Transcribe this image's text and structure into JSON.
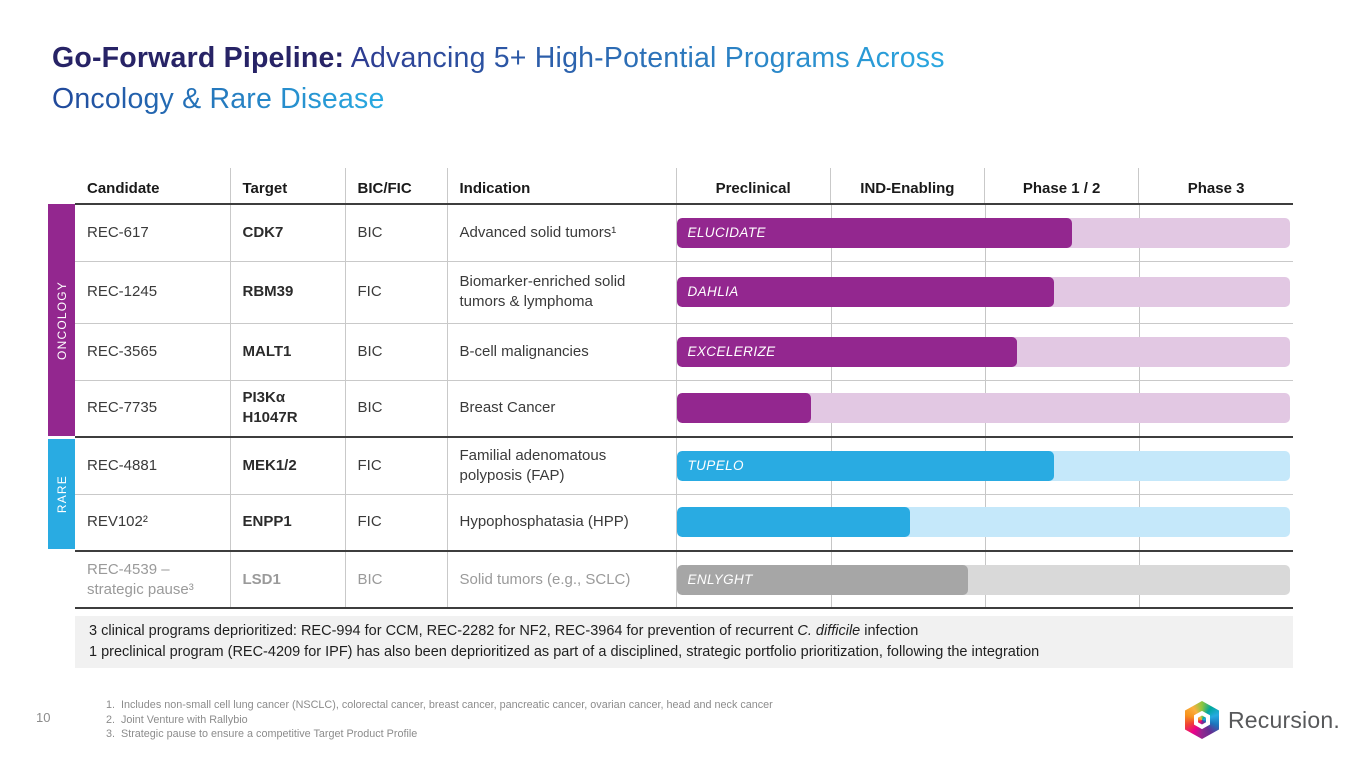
{
  "title": {
    "bold": "Go-Forward Pipeline:",
    "line1_rest": "Advancing 5+ High-Potential Programs Across",
    "line2": "Oncology & Rare Disease"
  },
  "groups": {
    "oncology": {
      "label": "ONCOLOGY",
      "color": "#93278F"
    },
    "rare": {
      "label": "RARE",
      "color": "#29ABE2"
    }
  },
  "colors": {
    "oncology": {
      "bar": "#93278F",
      "track": "#E2C8E3"
    },
    "rare": {
      "bar": "#29ABE2",
      "track": "#C5E8FA"
    },
    "paused": {
      "bar": "#A6A6A6",
      "track": "#D9D9D9"
    }
  },
  "table": {
    "headers": [
      "Candidate",
      "Target",
      "BIC/FIC",
      "Indication",
      "Preclinical",
      "IND-Enabling",
      "Phase 1 / 2",
      "Phase 3"
    ],
    "rows": [
      {
        "candidate": "REC-617",
        "target": "CDK7",
        "bic_fic": "BIC",
        "indication": "Advanced solid tumors¹",
        "group": "oncology",
        "bar": {
          "label": "ELUCIDATE",
          "progress_pct": 64.5
        },
        "thick_bottom": false
      },
      {
        "candidate": "REC-1245",
        "target": "RBM39",
        "bic_fic": "FIC",
        "indication": "Biomarker-enriched solid tumors & lymphoma",
        "group": "oncology",
        "bar": {
          "label": "DAHLIA",
          "progress_pct": 61.5
        },
        "thick_bottom": false
      },
      {
        "candidate": "REC-3565",
        "target": "MALT1",
        "bic_fic": "BIC",
        "indication": "B-cell malignancies",
        "group": "oncology",
        "bar": {
          "label": "EXCELERIZE",
          "progress_pct": 55.5
        },
        "thick_bottom": false
      },
      {
        "candidate": "REC-7735",
        "target": "PI3Kα H1047R",
        "bic_fic": "BIC",
        "indication": "Breast Cancer",
        "group": "oncology",
        "bar": {
          "label": "",
          "progress_pct": 22
        },
        "thick_bottom": true
      },
      {
        "candidate": "REC-4881",
        "target": "MEK1/2",
        "bic_fic": "FIC",
        "indication": "Familial adenomatous polyposis (FAP)",
        "group": "rare",
        "bar": {
          "label": "TUPELO",
          "progress_pct": 61.5
        },
        "thick_bottom": false
      },
      {
        "candidate": "REV102²",
        "target": "ENPP1",
        "bic_fic": "FIC",
        "indication": "Hypophosphatasia (HPP)",
        "group": "rare",
        "bar": {
          "label": "",
          "progress_pct": 38
        },
        "thick_bottom": true
      },
      {
        "candidate": "REC-4539 – strategic pause³",
        "target": "LSD1",
        "bic_fic": "BIC",
        "indication": "Solid tumors (e.g., SCLC)",
        "group": "paused",
        "bar": {
          "label": "ENLYGHT",
          "progress_pct": 47.5
        },
        "thick_bottom": true
      }
    ]
  },
  "deprioritized_note": {
    "line1_pre": "3 clinical programs deprioritized: REC-994 for CCM, REC-2282 for NF2, REC-3964 for prevention of recurrent ",
    "line1_italic": "C. difficile",
    "line1_post": " infection",
    "line2": "1 preclinical program (REC-4209 for IPF) has also been deprioritized as part of a disciplined, strategic portfolio prioritization, following the integration"
  },
  "footnotes": [
    "Includes non-small cell lung cancer (NSCLC), colorectal cancer, breast cancer, pancreatic cancer, ovarian cancer, head and neck cancer",
    "Joint Venture with Rallybio",
    "Strategic pause to ensure a competitive Target Product Profile"
  ],
  "page_number": "10",
  "logo": {
    "text": "Recursion.",
    "colors": [
      "#8DC63F",
      "#00A79D",
      "#27AAE1",
      "#1B75BC",
      "#662D91",
      "#92278F",
      "#EC008C",
      "#EF4136",
      "#F7941D",
      "#FBB040"
    ]
  }
}
